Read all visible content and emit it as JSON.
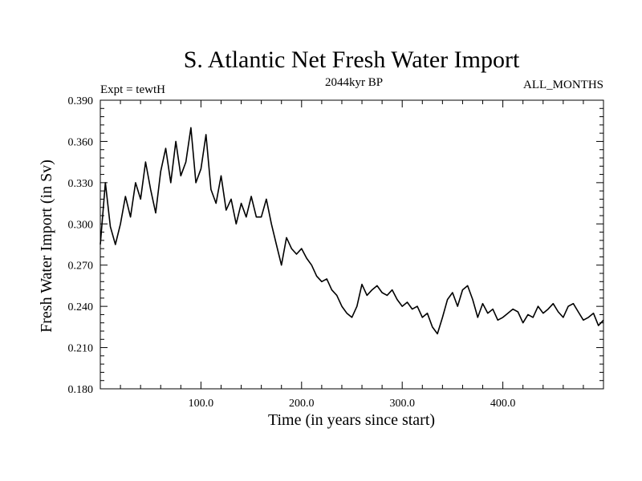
{
  "chart_data": {
    "type": "line",
    "title": "S. Atlantic Net Fresh Water Import",
    "subtitle": "2044kyr BP",
    "left_label": "Expt = tewtH",
    "right_label": "ALL_MONTHS",
    "xlabel": "Time (in years since start)",
    "ylabel": "Fresh Water Import (in Sv)",
    "xlim": [
      0,
      500
    ],
    "ylim": [
      0.18,
      0.39
    ],
    "x_ticks": [
      100,
      200,
      300,
      400
    ],
    "x_tick_labels": [
      "100.0",
      "200.0",
      "300.0",
      "400.0"
    ],
    "y_ticks": [
      0.18,
      0.21,
      0.24,
      0.27,
      0.3,
      0.33,
      0.36,
      0.39
    ],
    "y_tick_labels": [
      "0.180",
      "0.210",
      "0.240",
      "0.270",
      "0.300",
      "0.330",
      "0.360",
      "0.390"
    ],
    "grid": false,
    "series": [
      {
        "name": "Fresh Water Import",
        "color": "#000000",
        "x": [
          0,
          5,
          10,
          15,
          20,
          25,
          30,
          35,
          40,
          45,
          50,
          55,
          60,
          65,
          70,
          75,
          80,
          85,
          90,
          95,
          100,
          105,
          110,
          115,
          120,
          125,
          130,
          135,
          140,
          145,
          150,
          155,
          160,
          165,
          170,
          175,
          180,
          185,
          190,
          195,
          200,
          205,
          210,
          215,
          220,
          225,
          230,
          235,
          240,
          245,
          250,
          255,
          260,
          265,
          270,
          275,
          280,
          285,
          290,
          295,
          300,
          305,
          310,
          315,
          320,
          325,
          330,
          335,
          340,
          345,
          350,
          355,
          360,
          365,
          370,
          375,
          380,
          385,
          390,
          395,
          400,
          405,
          410,
          415,
          420,
          425,
          430,
          435,
          440,
          445,
          450,
          455,
          460,
          465,
          470,
          475,
          480,
          485,
          490,
          495,
          500
        ],
        "values": [
          0.285,
          0.33,
          0.298,
          0.285,
          0.3,
          0.32,
          0.305,
          0.33,
          0.318,
          0.345,
          0.325,
          0.308,
          0.338,
          0.355,
          0.33,
          0.36,
          0.335,
          0.345,
          0.37,
          0.33,
          0.34,
          0.365,
          0.325,
          0.315,
          0.335,
          0.31,
          0.318,
          0.3,
          0.315,
          0.305,
          0.32,
          0.305,
          0.305,
          0.318,
          0.3,
          0.285,
          0.27,
          0.29,
          0.282,
          0.278,
          0.282,
          0.275,
          0.27,
          0.262,
          0.258,
          0.26,
          0.252,
          0.248,
          0.24,
          0.235,
          0.232,
          0.24,
          0.256,
          0.248,
          0.252,
          0.255,
          0.25,
          0.248,
          0.252,
          0.245,
          0.24,
          0.243,
          0.238,
          0.24,
          0.232,
          0.235,
          0.225,
          0.22,
          0.232,
          0.245,
          0.25,
          0.24,
          0.252,
          0.255,
          0.245,
          0.232,
          0.242,
          0.235,
          0.238,
          0.23,
          0.232,
          0.235,
          0.238,
          0.236,
          0.228,
          0.234,
          0.232,
          0.24,
          0.235,
          0.238,
          0.242,
          0.236,
          0.232,
          0.24,
          0.242,
          0.236,
          0.23,
          0.232,
          0.235,
          0.226,
          0.23
        ]
      }
    ]
  }
}
